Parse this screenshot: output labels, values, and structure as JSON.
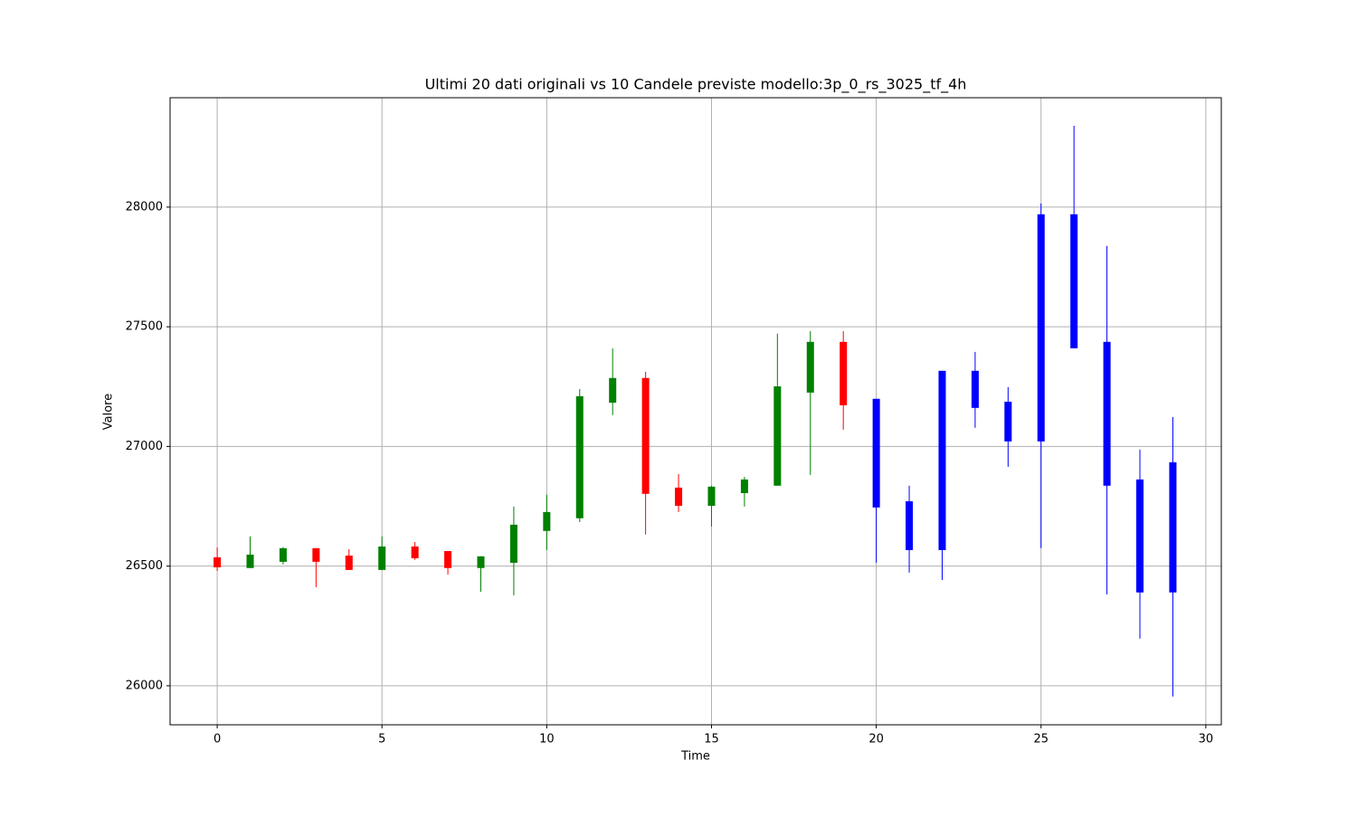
{
  "chart_data": {
    "type": "candlestick",
    "title": "Ultimi 20 dati originali vs 10 Candele previste modello:3p_0_rs_3025_tf_4h",
    "xlabel": "Time",
    "ylabel": "Valore",
    "x": [
      0,
      1,
      2,
      3,
      4,
      5,
      6,
      7,
      8,
      9,
      10,
      11,
      12,
      13,
      14,
      15,
      16,
      17,
      18,
      19,
      20,
      21,
      22,
      23,
      24,
      25,
      26,
      27,
      28,
      29
    ],
    "open": [
      26537,
      26492,
      26518,
      26575,
      26544,
      26484,
      26582,
      26563,
      26492,
      26514,
      26647,
      26700,
      27183,
      27286,
      26828,
      26752,
      26805,
      26836,
      27225,
      27437,
      27199,
      26771,
      26567,
      27316,
      27187,
      27021,
      27970,
      27437,
      26862,
      26934
    ],
    "high": [
      26578,
      26624,
      26579,
      26575,
      26571,
      26624,
      26601,
      26563,
      26541,
      26749,
      26798,
      27240,
      27410,
      27312,
      26885,
      26836,
      26873,
      27471,
      27482,
      27482,
      27199,
      26836,
      27316,
      27395,
      27248,
      28015,
      28340,
      27838,
      26987,
      27123
    ],
    "low": [
      26480,
      26492,
      26507,
      26412,
      26484,
      26484,
      26526,
      26465,
      26393,
      26378,
      26567,
      26684,
      27131,
      26632,
      26726,
      26665,
      26749,
      26836,
      26881,
      27070,
      26514,
      26473,
      26442,
      27078,
      26915,
      26575,
      27410,
      26382,
      26197,
      25955
    ],
    "close": [
      26495,
      26548,
      26575,
      26518,
      26484,
      26582,
      26533,
      26492,
      26541,
      26673,
      26726,
      27210,
      27286,
      26802,
      26752,
      26832,
      26862,
      27251,
      27437,
      27172,
      26745,
      26567,
      27316,
      27161,
      27021,
      27970,
      27410,
      26836,
      26390,
      26390
    ],
    "colors": [
      "red",
      "green",
      "green",
      "red",
      "red",
      "green",
      "red",
      "red",
      "green",
      "green",
      "green",
      "green",
      "green",
      "red",
      "red",
      "green",
      "green",
      "green",
      "green",
      "red",
      "blue",
      "blue",
      "blue",
      "blue",
      "blue",
      "blue",
      "blue",
      "blue",
      "blue",
      "blue"
    ],
    "xlim": [
      -1.43,
      30.47
    ],
    "ylim": [
      25837,
      28457
    ],
    "xticks": [
      0,
      5,
      10,
      15,
      20,
      25,
      30
    ],
    "yticks": [
      26000,
      26500,
      27000,
      27500,
      28000
    ],
    "grid": true
  }
}
